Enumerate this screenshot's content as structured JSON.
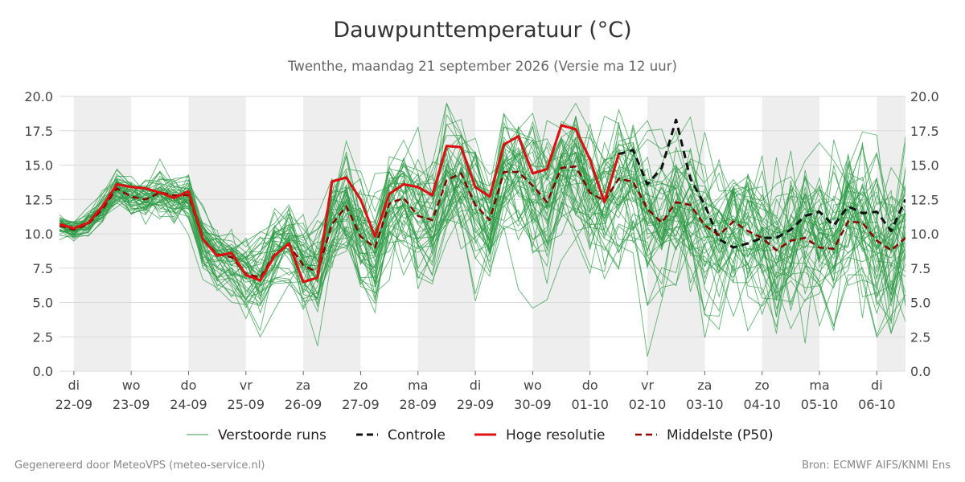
{
  "chart_data": {
    "type": "line",
    "title": "Dauwpunttemperatuur (°C)",
    "subtitle": "Twenthe, maandag 21 september 2026 (Versie ma 12 uur)",
    "ylim": [
      0,
      20
    ],
    "y_ticks": [
      "0.0",
      "2.5",
      "5.0",
      "7.5",
      "10.0",
      "12.5",
      "15.0",
      "17.5",
      "20.0"
    ],
    "x_range_days": [
      -0.25,
      14.5
    ],
    "x_ticks": [
      {
        "day": "di",
        "date": "22-09"
      },
      {
        "day": "wo",
        "date": "23-09"
      },
      {
        "day": "do",
        "date": "24-09"
      },
      {
        "day": "vr",
        "date": "25-09"
      },
      {
        "day": "za",
        "date": "26-09"
      },
      {
        "day": "zo",
        "date": "27-09"
      },
      {
        "day": "ma",
        "date": "28-09"
      },
      {
        "day": "di",
        "date": "29-09"
      },
      {
        "day": "wo",
        "date": "30-09"
      },
      {
        "day": "do",
        "date": "01-10"
      },
      {
        "day": "vr",
        "date": "02-10"
      },
      {
        "day": "za",
        "date": "03-10"
      },
      {
        "day": "zo",
        "date": "04-10"
      },
      {
        "day": "ma",
        "date": "05-10"
      },
      {
        "day": "di",
        "date": "06-10"
      }
    ],
    "grid": true,
    "shaded_days": "alternating",
    "legend_position": "bottom",
    "colors": {
      "ensemble": "#2e9b45",
      "controle": "#111111",
      "hoge_resolutie": "#e01010",
      "p50": "#8b0000",
      "shade": "#eeeeee"
    },
    "ensemble_members": 50,
    "ensemble_amplitude": [
      [
        0,
        0.6
      ],
      [
        2,
        1.5
      ],
      [
        4,
        2.5
      ],
      [
        7,
        3.5
      ],
      [
        10,
        4.0
      ],
      [
        14.5,
        4.5
      ]
    ],
    "series": [
      {
        "name": "Controle",
        "style": "dashed",
        "x": [
          -0.25,
          0,
          0.25,
          0.5,
          0.75,
          1,
          1.25,
          1.5,
          1.75,
          2,
          2.25,
          2.5,
          2.75,
          3,
          3.25,
          3.5,
          3.75,
          4,
          4.25,
          4.5,
          4.75,
          5,
          5.25,
          5.5,
          5.75,
          6,
          6.25,
          6.5,
          6.75,
          7,
          7.25,
          7.5,
          7.75,
          8,
          8.25,
          8.5,
          8.75,
          9,
          9.25,
          9.5,
          9.75,
          10,
          10.25,
          10.5,
          10.75,
          11,
          11.25,
          11.5,
          11.75,
          12,
          12.25,
          12.5,
          12.75,
          13,
          13.25,
          13.5,
          13.75,
          14,
          14.25,
          14.5
        ],
        "y": [
          10.7,
          10.4,
          10.8,
          12.0,
          13.6,
          13.4,
          13.3,
          13.0,
          12.6,
          13.1,
          9.6,
          8.4,
          8.6,
          7.0,
          6.6,
          8.4,
          9.3,
          6.5,
          6.8,
          13.8,
          14.1,
          12.5,
          9.8,
          12.9,
          13.6,
          13.4,
          12.8,
          16.4,
          16.3,
          13.4,
          12.7,
          16.5,
          17.1,
          14.4,
          14.7,
          17.9,
          17.6,
          15.4,
          12.3,
          15.8,
          16.1,
          13.6,
          14.8,
          18.3,
          14.0,
          12.1,
          9.6,
          9.0,
          9.3,
          9.7,
          9.7,
          10.3,
          11.3,
          11.6,
          10.6,
          12.0,
          11.5,
          11.6,
          10.2,
          12.5
        ]
      },
      {
        "name": "Hoge resolutie",
        "style": "solid",
        "x": [
          -0.25,
          0,
          0.25,
          0.5,
          0.75,
          1,
          1.25,
          1.5,
          1.75,
          2,
          2.25,
          2.5,
          2.75,
          3,
          3.25,
          3.5,
          3.75,
          4,
          4.25,
          4.5,
          4.75,
          5,
          5.25,
          5.5,
          5.75,
          6,
          6.25,
          6.5,
          6.75,
          7,
          7.25,
          7.5,
          7.75,
          8,
          8.25,
          8.5,
          8.75,
          9,
          9.25,
          9.5
        ],
        "y": [
          10.7,
          10.4,
          10.8,
          12.0,
          13.6,
          13.4,
          13.3,
          13.0,
          12.6,
          13.1,
          9.6,
          8.4,
          8.6,
          7.0,
          6.6,
          8.4,
          9.3,
          6.5,
          6.8,
          13.8,
          14.1,
          12.5,
          9.8,
          12.9,
          13.6,
          13.4,
          12.8,
          16.4,
          16.3,
          13.4,
          12.7,
          16.5,
          17.1,
          14.4,
          14.7,
          17.9,
          17.6,
          15.4,
          12.3,
          15.8
        ]
      },
      {
        "name": "Middelste (P50)",
        "style": "dashed",
        "x": [
          -0.25,
          0,
          0.25,
          0.5,
          0.75,
          1,
          1.25,
          1.5,
          1.75,
          2,
          2.25,
          2.5,
          2.75,
          3,
          3.25,
          3.5,
          3.75,
          4,
          4.25,
          4.5,
          4.75,
          5,
          5.25,
          5.5,
          5.75,
          6,
          6.25,
          6.5,
          6.75,
          7,
          7.25,
          7.5,
          7.75,
          8,
          8.25,
          8.5,
          8.75,
          9,
          9.25,
          9.5,
          9.75,
          10,
          10.25,
          10.5,
          10.75,
          11,
          11.25,
          11.5,
          11.75,
          12,
          12.25,
          12.5,
          12.75,
          13,
          13.25,
          13.5,
          13.75,
          14,
          14.25,
          14.5
        ],
        "y": [
          10.6,
          10.3,
          10.7,
          11.8,
          13.3,
          12.7,
          12.5,
          13.0,
          12.8,
          12.8,
          9.6,
          8.5,
          8.3,
          7.1,
          6.8,
          8.5,
          9.2,
          7.7,
          7.2,
          10.7,
          12.0,
          9.8,
          9.0,
          12.2,
          12.6,
          11.3,
          11.0,
          13.9,
          14.4,
          12.1,
          11.0,
          14.5,
          14.5,
          13.5,
          12.3,
          14.8,
          14.9,
          13.0,
          12.4,
          14.0,
          13.8,
          11.8,
          10.8,
          12.3,
          12.1,
          10.6,
          9.9,
          10.9,
          10.2,
          9.7,
          8.8,
          9.5,
          9.7,
          9.0,
          8.9,
          10.9,
          10.8,
          9.5,
          8.8,
          9.7
        ]
      }
    ],
    "legend": [
      {
        "label": "Verstoorde runs",
        "style": "ensemble"
      },
      {
        "label": "Controle",
        "style": "controle"
      },
      {
        "label": "Hoge resolutie",
        "style": "hoge_resolutie"
      },
      {
        "label": "Middelste (P50)",
        "style": "p50"
      }
    ]
  },
  "footer": {
    "left": "Gegenereerd door MeteoVPS (meteo-service.nl)",
    "right": "Bron: ECMWF AIFS/KNMI Ens"
  }
}
